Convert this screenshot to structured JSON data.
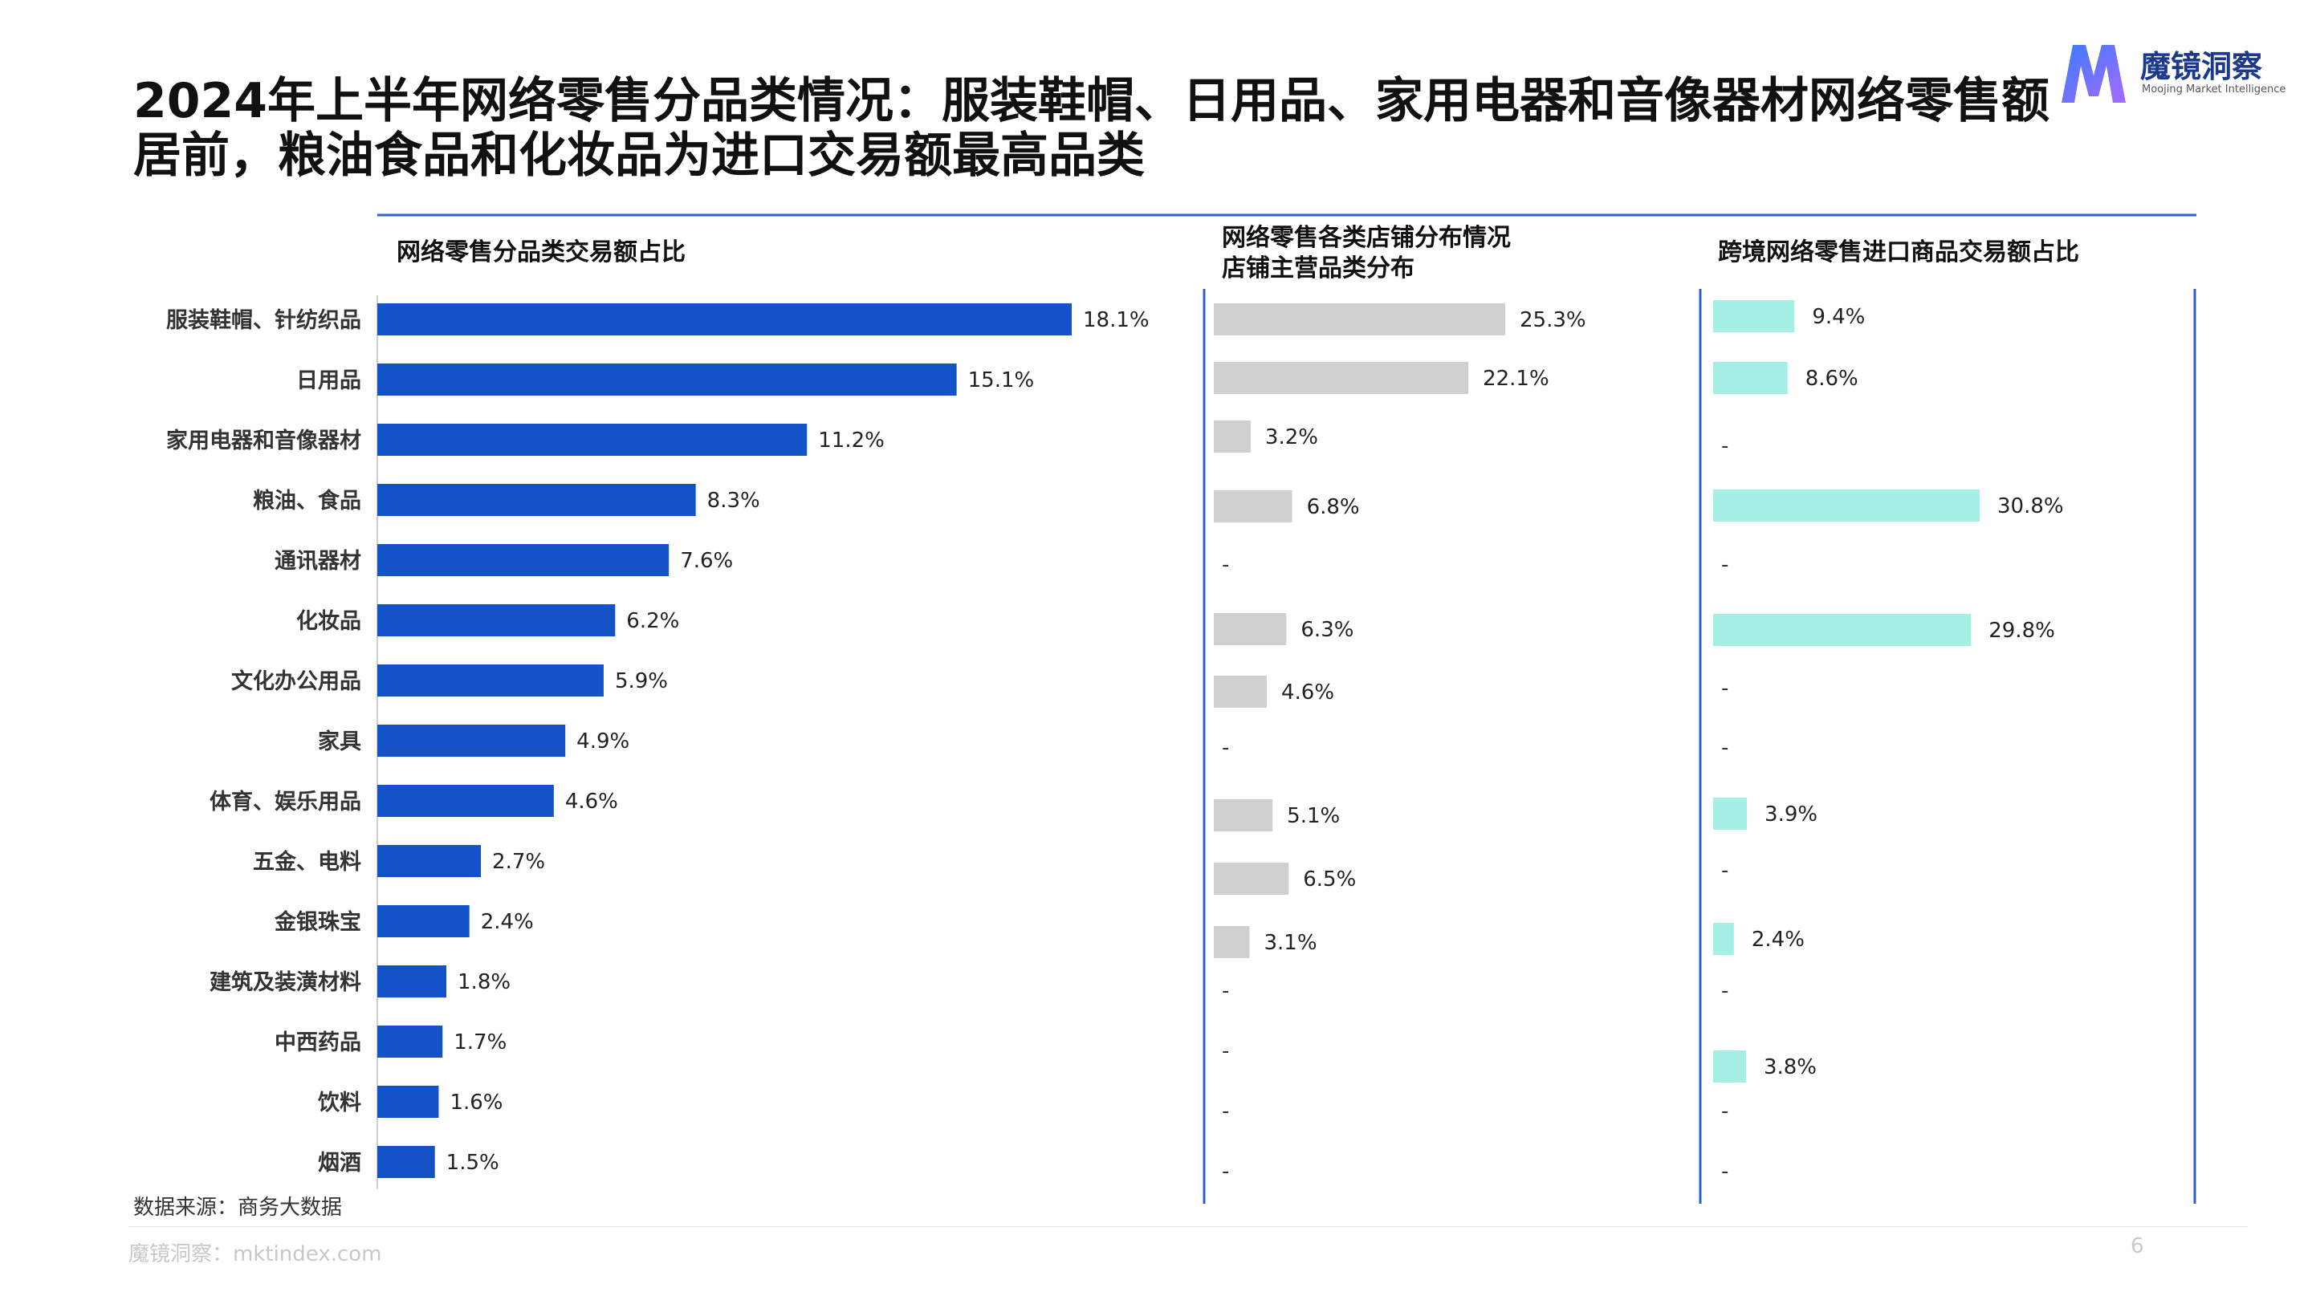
{
  "title": "2024年上半年网络零售分品类情况：服装鞋帽、日用品、家用电器和音像器材网络零售额居前，粮油食品和化妆品为进口交易额最高品类",
  "logo": {
    "name": "魔镜洞察",
    "subtitle": "Moojing Market Intelligence"
  },
  "source": "数据来源：商务大数据",
  "footer": {
    "site": "魔镜洞察：mktindex.com",
    "page": "6"
  },
  "colors": {
    "blue": "#1452C8",
    "gray": "#D0D0D0",
    "teal": "#A5EEE4",
    "rule": "#2E5FCF"
  },
  "chart_data": {
    "type": "bar",
    "categories": [
      "服装鞋帽、针纺织品",
      "日用品",
      "家用电器和音像器材",
      "粮油、食品",
      "通讯器材",
      "化妆品",
      "文化办公用品",
      "家具",
      "体育、娱乐用品",
      "五金、电料",
      "金银珠宝",
      "建筑及装潢材料",
      "中西药品",
      "饮料",
      "烟酒"
    ],
    "panels": [
      {
        "title": "网络零售分品类交易额占比",
        "values": [
          18.1,
          15.1,
          11.2,
          8.3,
          7.6,
          6.2,
          5.9,
          4.9,
          4.6,
          2.7,
          2.4,
          1.8,
          1.7,
          1.6,
          1.5
        ]
      },
      {
        "title": "网络零售各类店铺分布情况",
        "subtitle": "店铺主营品类分布",
        "values": [
          25.3,
          22.1,
          3.2,
          6.8,
          null,
          6.3,
          4.6,
          null,
          5.1,
          6.5,
          3.1,
          null,
          null,
          null,
          null
        ]
      },
      {
        "title": "跨境网络零售进口商品交易额占比",
        "values": [
          9.4,
          8.6,
          null,
          30.8,
          null,
          29.8,
          null,
          null,
          3.9,
          null,
          2.4,
          null,
          3.8,
          null,
          null
        ]
      }
    ],
    "value_suffix": "%",
    "missing_label": "-"
  }
}
